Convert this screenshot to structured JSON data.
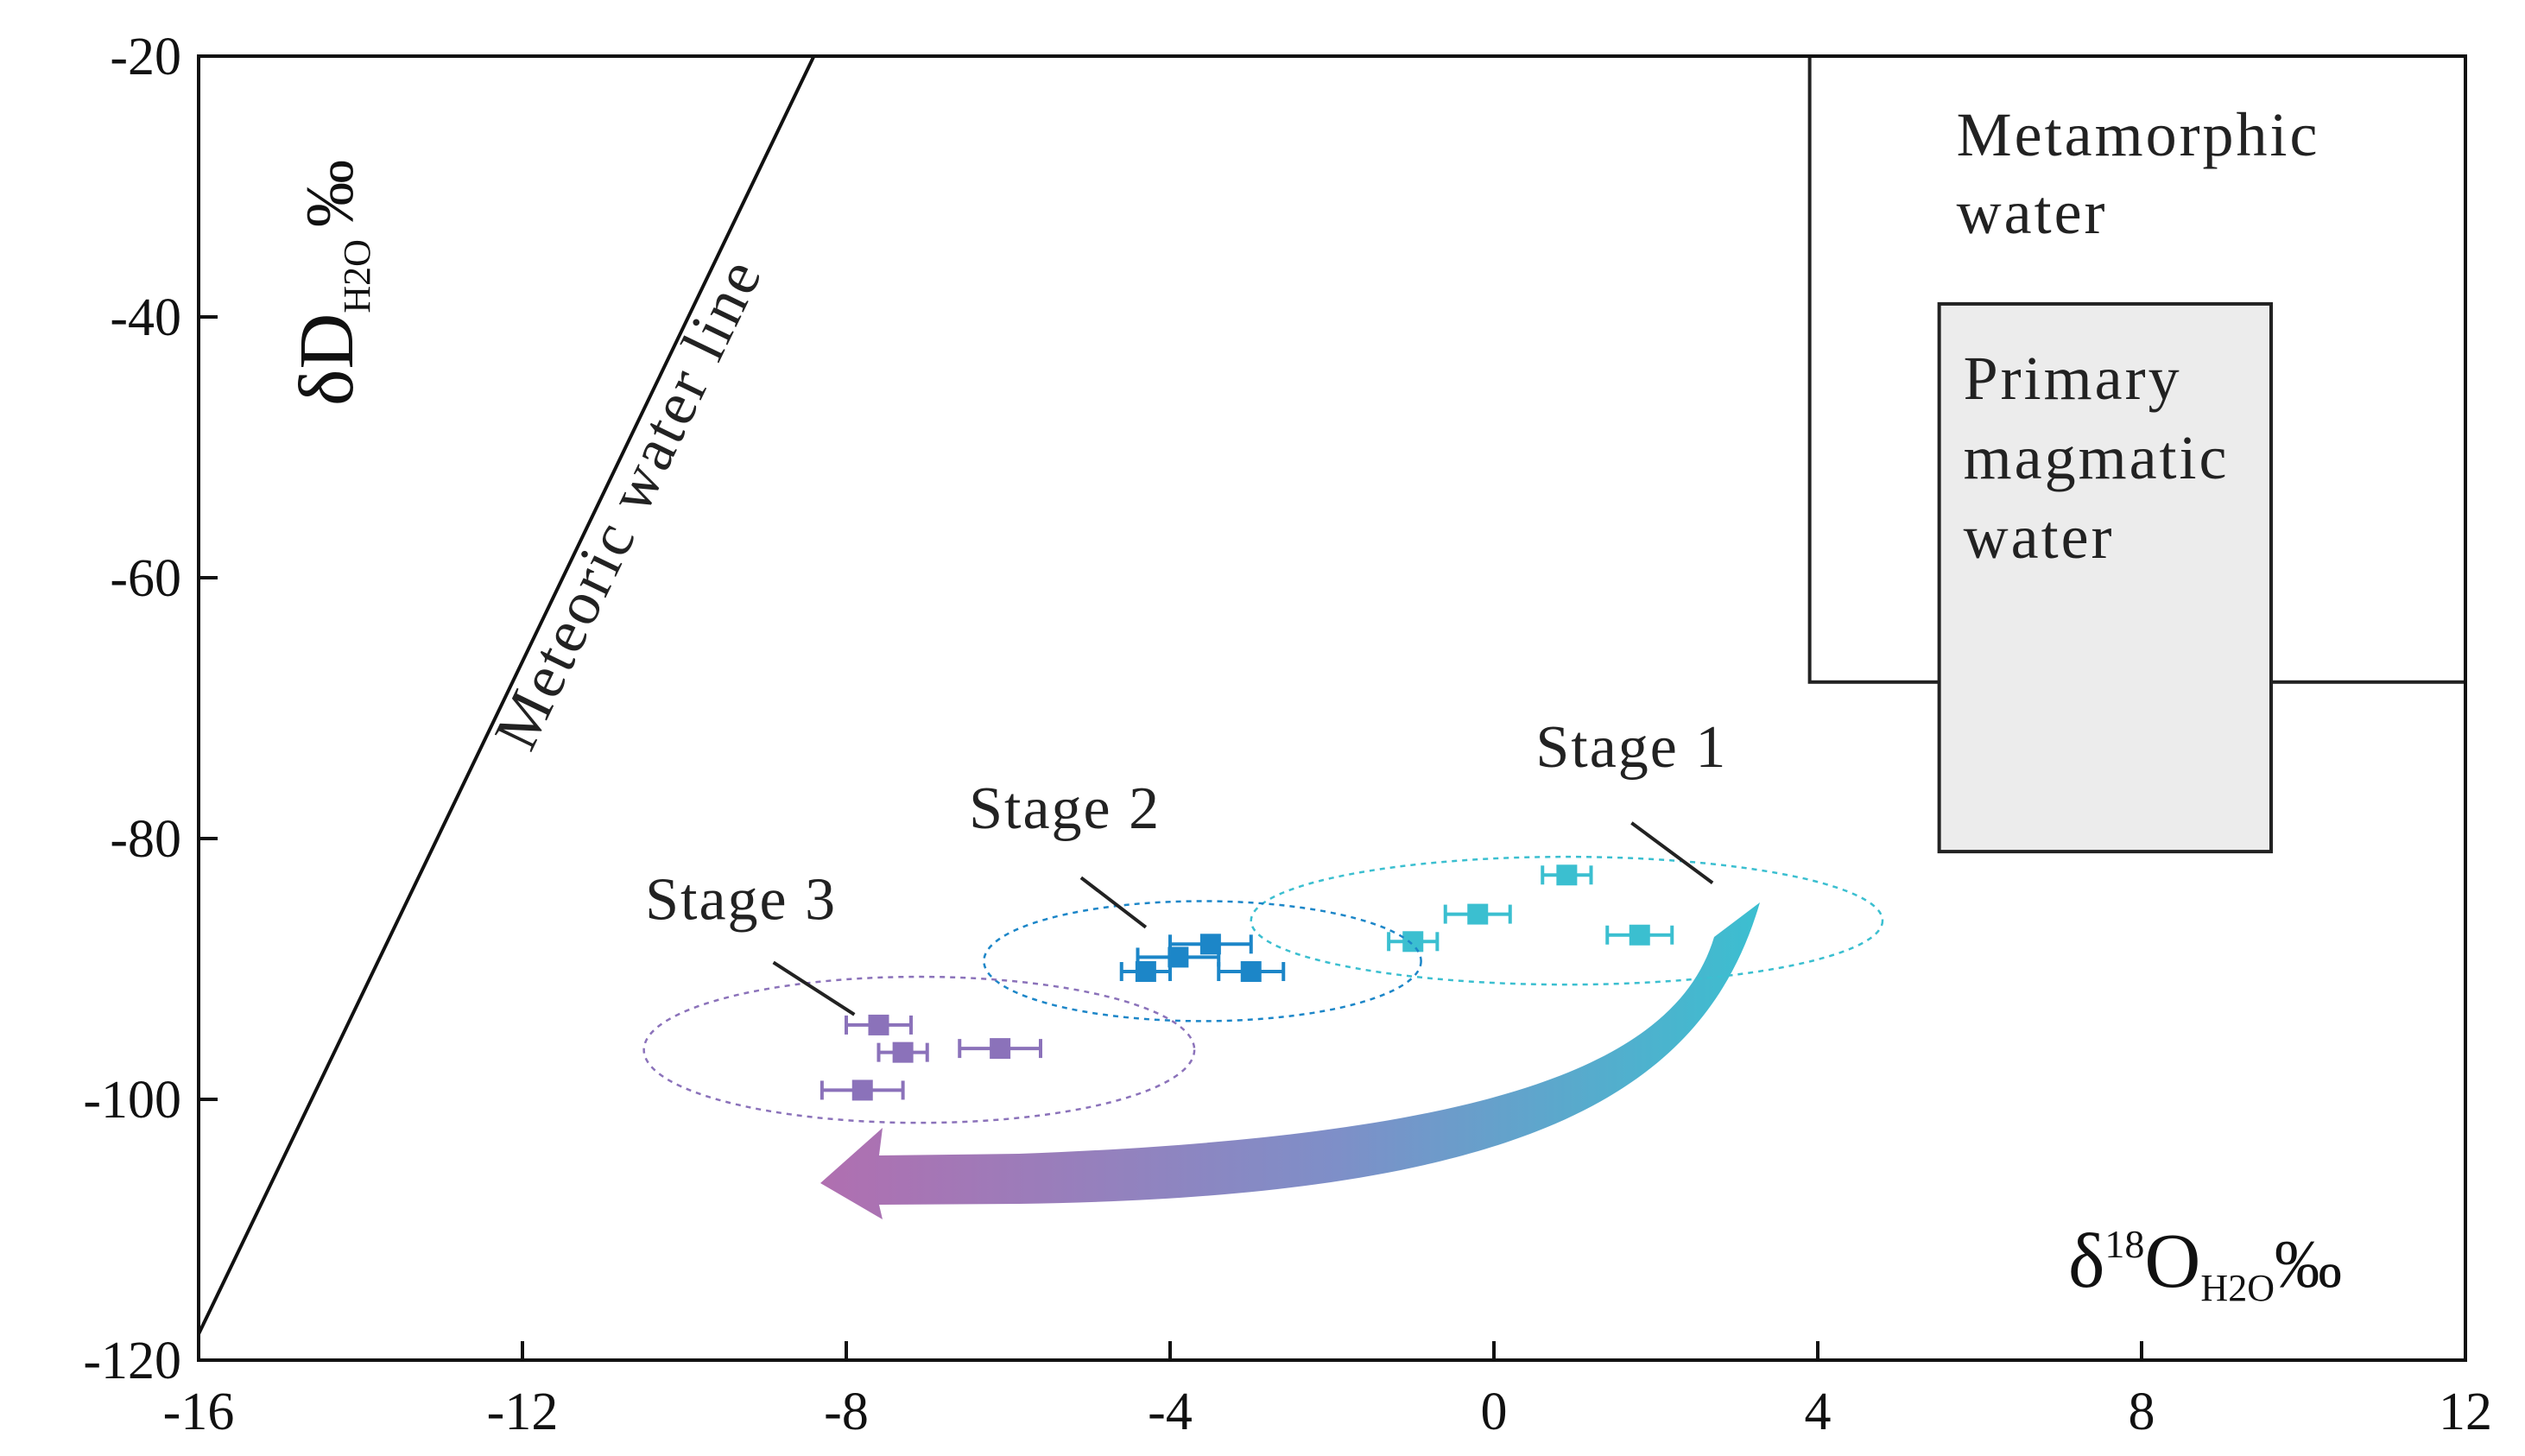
{
  "chart_data": {
    "type": "scatter",
    "xlim": [
      -16,
      12
    ],
    "ylim": [
      -120,
      -20
    ],
    "x_ticks": [
      -16,
      -12,
      -8,
      -4,
      0,
      4,
      8,
      12
    ],
    "y_ticks": [
      -20,
      -40,
      -60,
      -80,
      -100,
      -120
    ],
    "x_tick_labels": [
      "-16",
      "-12",
      "-8",
      "-4",
      "0",
      "4",
      "8",
      "12"
    ],
    "y_tick_labels": [
      "-20",
      "-40",
      "-60",
      "-80",
      "-100",
      "-120"
    ],
    "xlabel": {
      "main": "δ",
      "sup": "18",
      "base": "O",
      "sub": "H2O",
      "unit": "‰"
    },
    "ylabel": {
      "main": "δD",
      "sub": "H2O",
      "unit": "‰"
    },
    "meteoric_water_line": {
      "label": "Meteoric water line",
      "x": [
        -16,
        -8.4
      ],
      "y": [
        -118,
        -20
      ]
    },
    "regions": [
      {
        "name": "metamorphic",
        "label_lines": [
          "Metamorphic",
          "water"
        ],
        "x": [
          3.9,
          12
        ],
        "y": [
          -68,
          -20
        ],
        "fill": "#ffffff"
      },
      {
        "name": "primary-magmatic",
        "label_lines": [
          "Primary",
          "magmatic",
          "water"
        ],
        "x": [
          5.5,
          9.6
        ],
        "y": [
          -81,
          -39
        ],
        "fill": "#ececec"
      }
    ],
    "series": [
      {
        "name": "Stage 1",
        "color": "#3bbfd0",
        "points": [
          {
            "x": -1.0,
            "y": -87.9,
            "xerr": 0.3
          },
          {
            "x": -0.2,
            "y": -85.8,
            "xerr": 0.4
          },
          {
            "x": 0.9,
            "y": -82.8,
            "xerr": 0.3
          },
          {
            "x": 1.8,
            "y": -87.4,
            "xerr": 0.4
          }
        ],
        "ellipse": {
          "cx": 0.9,
          "cy": -86.3,
          "rx": 3.9,
          "ry": 4.9
        },
        "label_pos": {
          "x": 1.7,
          "y": -74.5
        },
        "leader": {
          "x1": 1.7,
          "y1": -78.8,
          "x2": 2.7,
          "y2": -83.4
        }
      },
      {
        "name": "Stage 2",
        "color": "#1c86c8",
        "points": [
          {
            "x": -4.3,
            "y": -90.2,
            "xerr": 0.3
          },
          {
            "x": -3.9,
            "y": -89.1,
            "xerr": 0.5
          },
          {
            "x": -3.5,
            "y": -88.1,
            "xerr": 0.5
          },
          {
            "x": -3.0,
            "y": -90.2,
            "xerr": 0.4
          }
        ],
        "ellipse": {
          "cx": -3.6,
          "cy": -89.4,
          "rx": 2.7,
          "ry": 4.6
        },
        "label_pos": {
          "x": -5.3,
          "y": -79.2
        },
        "leader": {
          "x1": -5.1,
          "y1": -83.0,
          "x2": -4.3,
          "y2": -86.8
        }
      },
      {
        "name": "Stage 3",
        "color": "#8b72ba",
        "points": [
          {
            "x": -7.6,
            "y": -94.3,
            "xerr": 0.4
          },
          {
            "x": -7.3,
            "y": -96.4,
            "xerr": 0.3
          },
          {
            "x": -6.1,
            "y": -96.1,
            "xerr": 0.5
          },
          {
            "x": -7.8,
            "y": -99.3,
            "xerr": 0.5
          }
        ],
        "ellipse": {
          "cx": -7.1,
          "cy": -96.2,
          "rx": 3.4,
          "ry": 5.6
        },
        "label_pos": {
          "x": -9.3,
          "y": -86.2
        },
        "leader": {
          "x1": -8.9,
          "y1": -89.5,
          "x2": -7.9,
          "y2": -93.5
        }
      }
    ],
    "evolution_arrow": {
      "from": "Stage 1",
      "to": "Stage 3",
      "colors": [
        "#3bbfd0",
        "#b06fb0"
      ]
    }
  }
}
